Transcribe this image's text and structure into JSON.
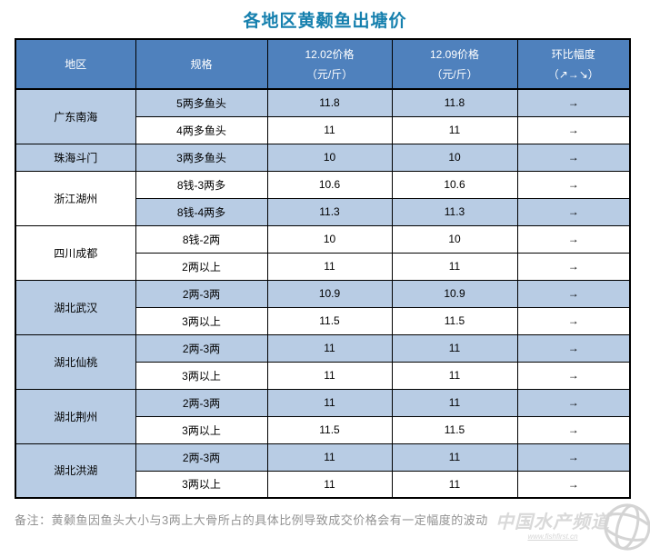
{
  "title": "各地区黄颡鱼出塘价",
  "table": {
    "headers": {
      "region": "地区",
      "spec": "规格",
      "price1_line1": "12.02价格",
      "price1_line2": "（元/斤）",
      "price2_line1": "12.09价格",
      "price2_line2": "（元/斤）",
      "trend_line1": "环比幅度",
      "trend_line2": "（↗→↘）"
    },
    "groups": [
      {
        "region": "广东南海",
        "region_shaded": true,
        "rows": [
          {
            "spec": "5两多鱼头",
            "p1": "11.8",
            "p2": "11.8",
            "trend": "→",
            "shaded": true
          },
          {
            "spec": "4两多鱼头",
            "p1": "11",
            "p2": "11",
            "trend": "→",
            "shaded": false
          }
        ]
      },
      {
        "region": "珠海斗门",
        "region_shaded": true,
        "rows": [
          {
            "spec": "3两多鱼头",
            "p1": "10",
            "p2": "10",
            "trend": "→",
            "shaded": true
          }
        ]
      },
      {
        "region": "浙江湖州",
        "region_shaded": false,
        "rows": [
          {
            "spec": "8钱-3两多",
            "p1": "10.6",
            "p2": "10.6",
            "trend": "→",
            "shaded": false
          },
          {
            "spec": "8钱-4两多",
            "p1": "11.3",
            "p2": "11.3",
            "trend": "→",
            "shaded": true
          }
        ]
      },
      {
        "region": "四川成都",
        "region_shaded": false,
        "rows": [
          {
            "spec": "8钱-2两",
            "p1": "10",
            "p2": "10",
            "trend": "→",
            "shaded": false
          },
          {
            "spec": "2两以上",
            "p1": "11",
            "p2": "11",
            "trend": "→",
            "shaded": false
          }
        ]
      },
      {
        "region": "湖北武汉",
        "region_shaded": true,
        "rows": [
          {
            "spec": "2两-3两",
            "p1": "10.9",
            "p2": "10.9",
            "trend": "→",
            "shaded": true
          },
          {
            "spec": "3两以上",
            "p1": "11.5",
            "p2": "11.5",
            "trend": "→",
            "shaded": false
          }
        ]
      },
      {
        "region": "湖北仙桃",
        "region_shaded": true,
        "rows": [
          {
            "spec": "2两-3两",
            "p1": "11",
            "p2": "11",
            "trend": "→",
            "shaded": true
          },
          {
            "spec": "3两以上",
            "p1": "11",
            "p2": "11",
            "trend": "→",
            "shaded": false
          }
        ]
      },
      {
        "region": "湖北荆州",
        "region_shaded": true,
        "rows": [
          {
            "spec": "2两-3两",
            "p1": "11",
            "p2": "11",
            "trend": "→",
            "shaded": true
          },
          {
            "spec": "3两以上",
            "p1": "11.5",
            "p2": "11.5",
            "trend": "→",
            "shaded": false
          }
        ]
      },
      {
        "region": "湖北洪湖",
        "region_shaded": true,
        "rows": [
          {
            "spec": "2两-3两",
            "p1": "11",
            "p2": "11",
            "trend": "→",
            "shaded": true
          },
          {
            "spec": "3两以上",
            "p1": "11",
            "p2": "11",
            "trend": "→",
            "shaded": false
          }
        ]
      }
    ]
  },
  "note": "备注：黄颡鱼因鱼头大小与3两上大骨所占的具体比例导致成交价格会有一定幅度的波动",
  "watermark": {
    "brand": "中国水产频道",
    "url": "www.fishfirst.cn"
  },
  "colors": {
    "title": "#1680AE",
    "header_bg": "#4F81BD",
    "header_text": "#ffffff",
    "shaded_row_bg": "#B8CCE4",
    "white_row_bg": "#ffffff",
    "border": "#000000",
    "note_text": "#929292",
    "watermark": "#d9d9d9"
  },
  "chart_data": {
    "type": "table",
    "title": "各地区黄颡鱼出塘价",
    "columns": [
      "地区",
      "规格",
      "12.02价格（元/斤）",
      "12.09价格（元/斤）",
      "环比幅度（↗→↘）"
    ],
    "rows": [
      [
        "广东南海",
        "5两多鱼头",
        11.8,
        11.8,
        "→"
      ],
      [
        "广东南海",
        "4两多鱼头",
        11,
        11,
        "→"
      ],
      [
        "珠海斗门",
        "3两多鱼头",
        10,
        10,
        "→"
      ],
      [
        "浙江湖州",
        "8钱-3两多",
        10.6,
        10.6,
        "→"
      ],
      [
        "浙江湖州",
        "8钱-4两多",
        11.3,
        11.3,
        "→"
      ],
      [
        "四川成都",
        "8钱-2两",
        10,
        10,
        "→"
      ],
      [
        "四川成都",
        "2两以上",
        11,
        11,
        "→"
      ],
      [
        "湖北武汉",
        "2两-3两",
        10.9,
        10.9,
        "→"
      ],
      [
        "湖北武汉",
        "3两以上",
        11.5,
        11.5,
        "→"
      ],
      [
        "湖北仙桃",
        "2两-3两",
        11,
        11,
        "→"
      ],
      [
        "湖北仙桃",
        "3两以上",
        11,
        11,
        "→"
      ],
      [
        "湖北荆州",
        "2两-3两",
        11,
        11,
        "→"
      ],
      [
        "湖北荆州",
        "3两以上",
        11.5,
        11.5,
        "→"
      ],
      [
        "湖北洪湖",
        "2两-3两",
        11,
        11,
        "→"
      ],
      [
        "湖北洪湖",
        "3两以上",
        11,
        11,
        "→"
      ]
    ]
  }
}
